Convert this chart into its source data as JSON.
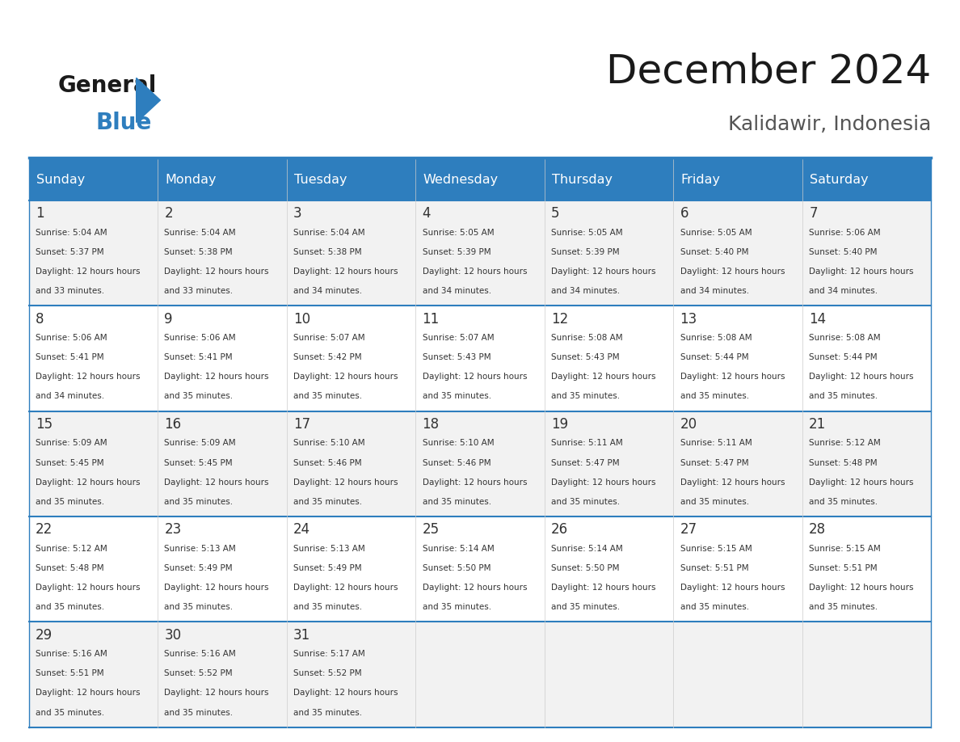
{
  "title": "December 2024",
  "subtitle": "Kalidawir, Indonesia",
  "days_of_week": [
    "Sunday",
    "Monday",
    "Tuesday",
    "Wednesday",
    "Thursday",
    "Friday",
    "Saturday"
  ],
  "header_bg": "#2e7ebe",
  "header_text_color": "#ffffff",
  "cell_bg_light": "#f2f2f2",
  "cell_bg_white": "#ffffff",
  "grid_line_color": "#2e7ebe",
  "title_color": "#1a1a1a",
  "subtitle_color": "#555555",
  "day_number_color": "#333333",
  "cell_text_color": "#333333",
  "logo_general_color": "#1a1a1a",
  "logo_blue_color": "#2e7ebe",
  "weeks": [
    {
      "days": [
        {
          "date": 1,
          "sunrise": "5:04 AM",
          "sunset": "5:37 PM",
          "daylight": "12 hours and 33 minutes."
        },
        {
          "date": 2,
          "sunrise": "5:04 AM",
          "sunset": "5:38 PM",
          "daylight": "12 hours and 33 minutes."
        },
        {
          "date": 3,
          "sunrise": "5:04 AM",
          "sunset": "5:38 PM",
          "daylight": "12 hours and 34 minutes."
        },
        {
          "date": 4,
          "sunrise": "5:05 AM",
          "sunset": "5:39 PM",
          "daylight": "12 hours and 34 minutes."
        },
        {
          "date": 5,
          "sunrise": "5:05 AM",
          "sunset": "5:39 PM",
          "daylight": "12 hours and 34 minutes."
        },
        {
          "date": 6,
          "sunrise": "5:05 AM",
          "sunset": "5:40 PM",
          "daylight": "12 hours and 34 minutes."
        },
        {
          "date": 7,
          "sunrise": "5:06 AM",
          "sunset": "5:40 PM",
          "daylight": "12 hours and 34 minutes."
        }
      ]
    },
    {
      "days": [
        {
          "date": 8,
          "sunrise": "5:06 AM",
          "sunset": "5:41 PM",
          "daylight": "12 hours and 34 minutes."
        },
        {
          "date": 9,
          "sunrise": "5:06 AM",
          "sunset": "5:41 PM",
          "daylight": "12 hours and 35 minutes."
        },
        {
          "date": 10,
          "sunrise": "5:07 AM",
          "sunset": "5:42 PM",
          "daylight": "12 hours and 35 minutes."
        },
        {
          "date": 11,
          "sunrise": "5:07 AM",
          "sunset": "5:43 PM",
          "daylight": "12 hours and 35 minutes."
        },
        {
          "date": 12,
          "sunrise": "5:08 AM",
          "sunset": "5:43 PM",
          "daylight": "12 hours and 35 minutes."
        },
        {
          "date": 13,
          "sunrise": "5:08 AM",
          "sunset": "5:44 PM",
          "daylight": "12 hours and 35 minutes."
        },
        {
          "date": 14,
          "sunrise": "5:08 AM",
          "sunset": "5:44 PM",
          "daylight": "12 hours and 35 minutes."
        }
      ]
    },
    {
      "days": [
        {
          "date": 15,
          "sunrise": "5:09 AM",
          "sunset": "5:45 PM",
          "daylight": "12 hours and 35 minutes."
        },
        {
          "date": 16,
          "sunrise": "5:09 AM",
          "sunset": "5:45 PM",
          "daylight": "12 hours and 35 minutes."
        },
        {
          "date": 17,
          "sunrise": "5:10 AM",
          "sunset": "5:46 PM",
          "daylight": "12 hours and 35 minutes."
        },
        {
          "date": 18,
          "sunrise": "5:10 AM",
          "sunset": "5:46 PM",
          "daylight": "12 hours and 35 minutes."
        },
        {
          "date": 19,
          "sunrise": "5:11 AM",
          "sunset": "5:47 PM",
          "daylight": "12 hours and 35 minutes."
        },
        {
          "date": 20,
          "sunrise": "5:11 AM",
          "sunset": "5:47 PM",
          "daylight": "12 hours and 35 minutes."
        },
        {
          "date": 21,
          "sunrise": "5:12 AM",
          "sunset": "5:48 PM",
          "daylight": "12 hours and 35 minutes."
        }
      ]
    },
    {
      "days": [
        {
          "date": 22,
          "sunrise": "5:12 AM",
          "sunset": "5:48 PM",
          "daylight": "12 hours and 35 minutes."
        },
        {
          "date": 23,
          "sunrise": "5:13 AM",
          "sunset": "5:49 PM",
          "daylight": "12 hours and 35 minutes."
        },
        {
          "date": 24,
          "sunrise": "5:13 AM",
          "sunset": "5:49 PM",
          "daylight": "12 hours and 35 minutes."
        },
        {
          "date": 25,
          "sunrise": "5:14 AM",
          "sunset": "5:50 PM",
          "daylight": "12 hours and 35 minutes."
        },
        {
          "date": 26,
          "sunrise": "5:14 AM",
          "sunset": "5:50 PM",
          "daylight": "12 hours and 35 minutes."
        },
        {
          "date": 27,
          "sunrise": "5:15 AM",
          "sunset": "5:51 PM",
          "daylight": "12 hours and 35 minutes."
        },
        {
          "date": 28,
          "sunrise": "5:15 AM",
          "sunset": "5:51 PM",
          "daylight": "12 hours and 35 minutes."
        }
      ]
    },
    {
      "days": [
        {
          "date": 29,
          "sunrise": "5:16 AM",
          "sunset": "5:51 PM",
          "daylight": "12 hours and 35 minutes."
        },
        {
          "date": 30,
          "sunrise": "5:16 AM",
          "sunset": "5:52 PM",
          "daylight": "12 hours and 35 minutes."
        },
        {
          "date": 31,
          "sunrise": "5:17 AM",
          "sunset": "5:52 PM",
          "daylight": "12 hours and 35 minutes."
        },
        {
          "date": null,
          "sunrise": null,
          "sunset": null,
          "daylight": null
        },
        {
          "date": null,
          "sunrise": null,
          "sunset": null,
          "daylight": null
        },
        {
          "date": null,
          "sunrise": null,
          "sunset": null,
          "daylight": null
        },
        {
          "date": null,
          "sunrise": null,
          "sunset": null,
          "daylight": null
        }
      ]
    }
  ]
}
